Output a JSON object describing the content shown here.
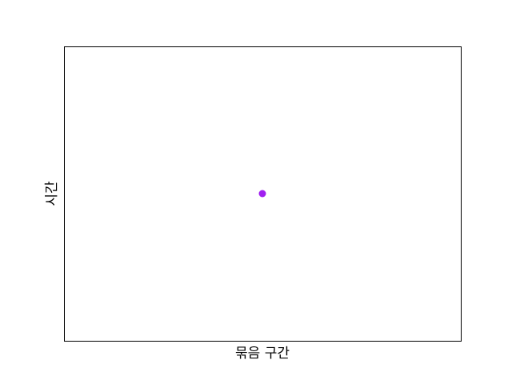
{
  "chart_data": {
    "type": "scatter",
    "title": "",
    "xlabel": "묶음 구간",
    "ylabel": "시간",
    "grid": false,
    "x_ticks_visible": false,
    "y_ticks_visible": false,
    "points": [
      {
        "x": 0,
        "y": 0
      }
    ],
    "xlim": [
      -1,
      1
    ],
    "ylim": [
      -1,
      1
    ],
    "marker_color": "#a020f0",
    "frame_color": "#000000",
    "background_color": "#ffffff"
  }
}
